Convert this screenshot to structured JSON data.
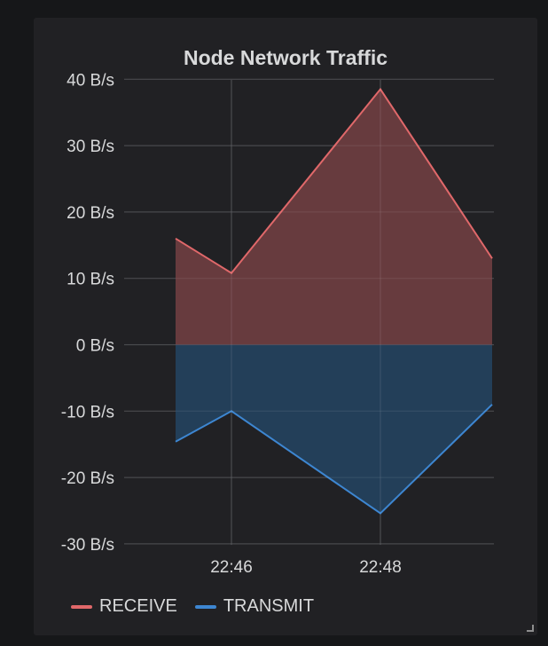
{
  "panel": {
    "title": "Node Network Traffic"
  },
  "legend": [
    {
      "label": "RECEIVE",
      "color": "#e0686a"
    },
    {
      "label": "TRANSMIT",
      "color": "#3d86d1"
    }
  ],
  "chart_data": {
    "type": "area",
    "title": "Node Network Traffic",
    "x": [
      "22:45:15",
      "22:46",
      "22:48",
      "22:49:30"
    ],
    "x_tick_labels": [
      "22:46",
      "22:48"
    ],
    "y_tick_labels": [
      "40 B/s",
      "30 B/s",
      "20 B/s",
      "10 B/s",
      "0 B/s",
      "-10 B/s",
      "-20 B/s",
      "-30 B/s"
    ],
    "y_ticks": [
      40,
      30,
      20,
      10,
      0,
      -10,
      -20,
      -30
    ],
    "ylim": [
      -30,
      40
    ],
    "grid": true,
    "legend_position": "bottom-left",
    "series": [
      {
        "name": "RECEIVE",
        "color": "#e0686a",
        "fill": "#6e3e41",
        "values": [
          16,
          10.8,
          38.5,
          13
        ]
      },
      {
        "name": "TRANSMIT",
        "color": "#3d86d1",
        "fill": "#24425e",
        "values": [
          -14.6,
          -10,
          -25.4,
          -9
        ]
      }
    ]
  }
}
